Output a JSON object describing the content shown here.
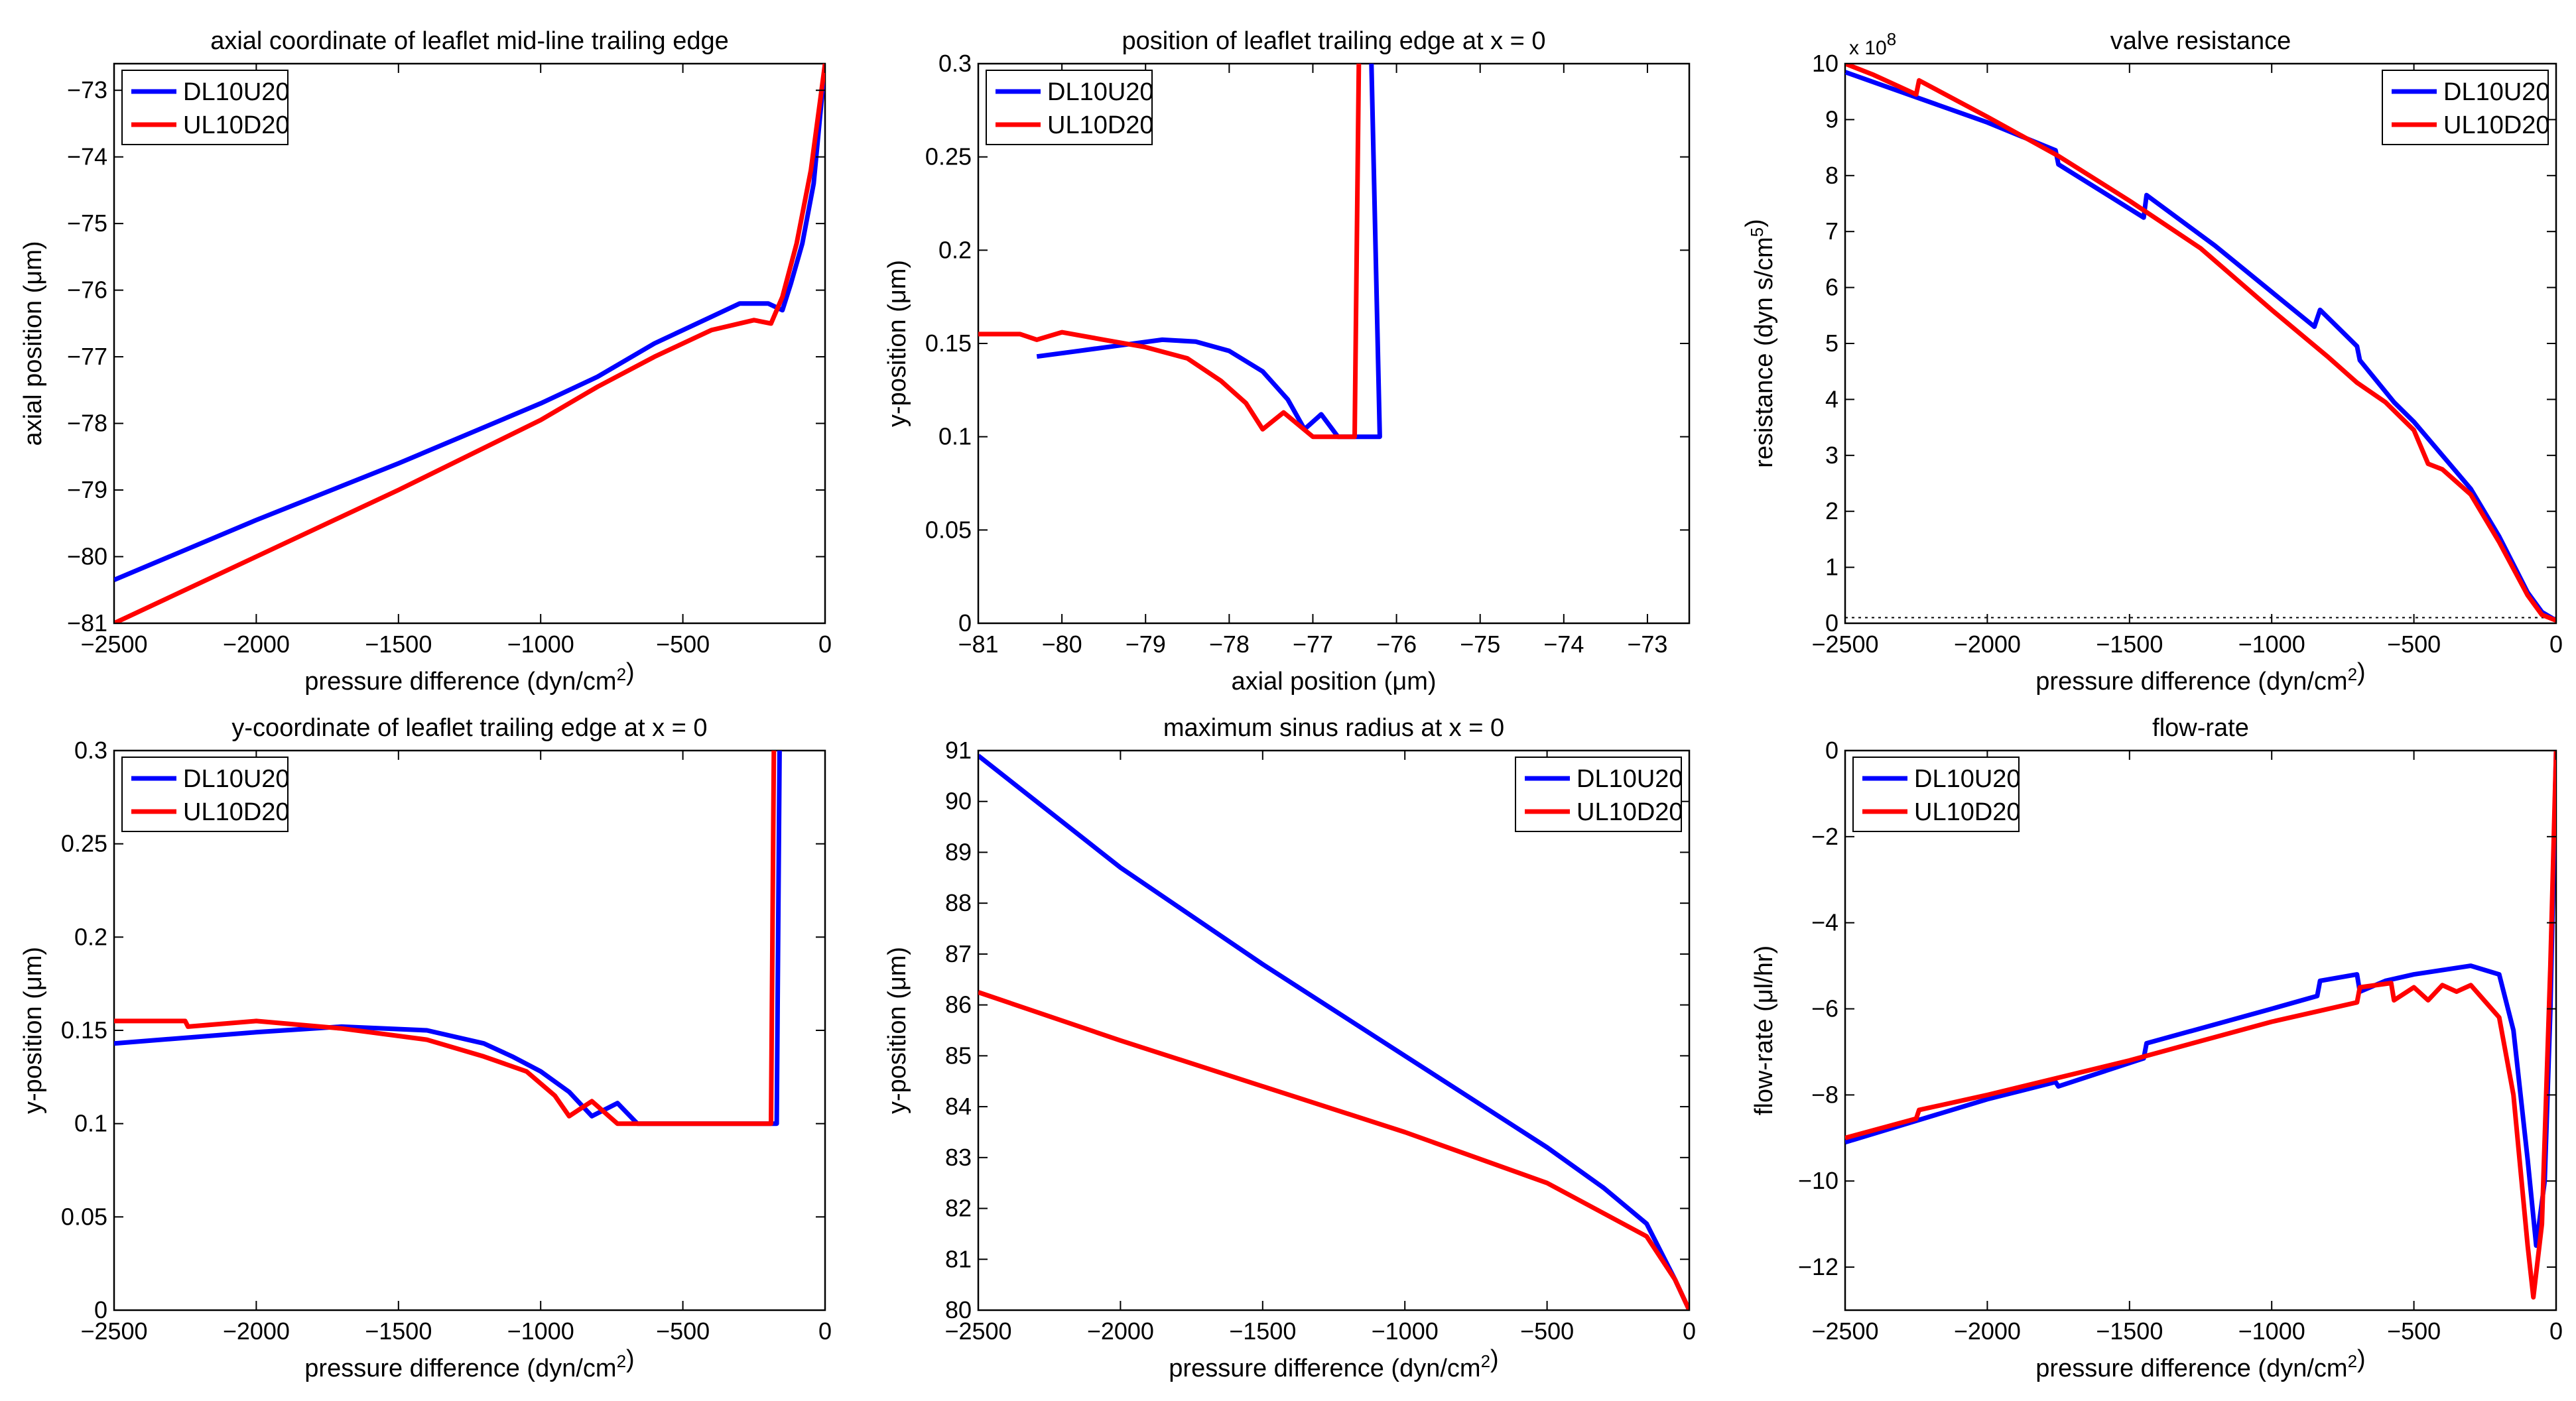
{
  "figure": {
    "panels": [
      {
        "id": "axial-coordinate",
        "title": "axial coordinate of leaflet mid-line trailing edge",
        "xlabel": "pressure difference (dyn/cm²)",
        "ylabel": "axial position (μm)"
      },
      {
        "id": "trailing-edge-position",
        "title": "position of leaflet trailing edge at x = 0",
        "xlabel": "axial position (μm)",
        "ylabel": "y-position (μm)"
      },
      {
        "id": "valve-resistance",
        "title": "valve resistance",
        "xlabel": "pressure difference (dyn/cm²)",
        "ylabel": "resistance (dyn s/cm⁵)",
        "yexponent": "x 10⁸"
      },
      {
        "id": "trailing-edge-y",
        "title": "y-coordinate of leaflet trailing edge at x = 0",
        "xlabel": "pressure difference (dyn/cm²)",
        "ylabel": "y-position (μm)"
      },
      {
        "id": "sinus-radius",
        "title": "maximum sinus radius at x = 0",
        "xlabel": "pressure difference (dyn/cm²)",
        "ylabel": "y-position (μm)"
      },
      {
        "id": "flow-rate",
        "title": "flow-rate",
        "xlabel": "pressure difference (dyn/cm²)",
        "ylabel": "flow-rate (μl/hr)"
      }
    ]
  },
  "chart_data": [
    {
      "type": "line",
      "title": "axial coordinate of leaflet mid-line trailing edge",
      "xlabel": "pressure difference (dyn/cm²)",
      "ylabel": "axial position (μm)",
      "xlim": [
        -2500,
        0
      ],
      "ylim": [
        -81,
        -72.6
      ],
      "xticks": [
        -2500,
        -2000,
        -1500,
        -1000,
        -500,
        0
      ],
      "yticks": [
        -81,
        -80,
        -79,
        -78,
        -77,
        -76,
        -75,
        -74,
        -73
      ],
      "legend_position": "top-left",
      "series": [
        {
          "name": "DL10U20",
          "color": "#0000ff",
          "points": [
            [
              -2500,
              -80.35
            ],
            [
              -2000,
              -79.45
            ],
            [
              -1500,
              -78.6
            ],
            [
              -1000,
              -77.7
            ],
            [
              -800,
              -77.3
            ],
            [
              -600,
              -76.8
            ],
            [
              -400,
              -76.4
            ],
            [
              -300,
              -76.2
            ],
            [
              -200,
              -76.2
            ],
            [
              -150,
              -76.3
            ],
            [
              -120,
              -75.9
            ],
            [
              -80,
              -75.3
            ],
            [
              -40,
              -74.4
            ],
            [
              0,
              -72.6
            ]
          ]
        },
        {
          "name": "UL10D20",
          "color": "#ff0000",
          "points": [
            [
              -2500,
              -81.0
            ],
            [
              -2000,
              -80.0
            ],
            [
              -1500,
              -79.0
            ],
            [
              -1000,
              -77.95
            ],
            [
              -800,
              -77.45
            ],
            [
              -600,
              -77.0
            ],
            [
              -400,
              -76.6
            ],
            [
              -250,
              -76.45
            ],
            [
              -190,
              -76.5
            ],
            [
              -150,
              -76.1
            ],
            [
              -100,
              -75.3
            ],
            [
              -50,
              -74.2
            ],
            [
              0,
              -72.6
            ]
          ]
        }
      ]
    },
    {
      "type": "line",
      "title": "position of leaflet trailing edge at x = 0",
      "xlabel": "axial position (μm)",
      "ylabel": "y-position (μm)",
      "xlim": [
        -81,
        -72.5
      ],
      "ylim": [
        0,
        0.3
      ],
      "xticks": [
        -81,
        -80,
        -79,
        -78,
        -77,
        -76,
        -75,
        -74,
        -73
      ],
      "yticks": [
        0,
        0.05,
        0.1,
        0.15,
        0.2,
        0.25,
        0.3
      ],
      "legend_position": "top-left",
      "series": [
        {
          "name": "DL10U20",
          "color": "#0000ff",
          "points": [
            [
              -80.3,
              0.143
            ],
            [
              -79.8,
              0.146
            ],
            [
              -79.3,
              0.149
            ],
            [
              -78.8,
              0.152
            ],
            [
              -78.4,
              0.151
            ],
            [
              -78.0,
              0.146
            ],
            [
              -77.6,
              0.135
            ],
            [
              -77.3,
              0.12
            ],
            [
              -77.1,
              0.104
            ],
            [
              -76.9,
              0.112
            ],
            [
              -76.7,
              0.1
            ],
            [
              -76.2,
              0.1
            ],
            [
              -76.3,
              0.3
            ]
          ]
        },
        {
          "name": "UL10D20",
          "color": "#ff0000",
          "points": [
            [
              -81.0,
              0.155
            ],
            [
              -80.5,
              0.155
            ],
            [
              -80.3,
              0.152
            ],
            [
              -80.0,
              0.156
            ],
            [
              -79.5,
              0.152
            ],
            [
              -79.0,
              0.148
            ],
            [
              -78.5,
              0.142
            ],
            [
              -78.1,
              0.13
            ],
            [
              -77.8,
              0.118
            ],
            [
              -77.6,
              0.104
            ],
            [
              -77.35,
              0.113
            ],
            [
              -77.0,
              0.1
            ],
            [
              -76.5,
              0.1
            ],
            [
              -76.45,
              0.3
            ]
          ]
        }
      ]
    },
    {
      "type": "line",
      "title": "valve resistance",
      "xlabel": "pressure difference (dyn/cm²)",
      "ylabel": "resistance (dyn s/cm⁵)",
      "yexponent": "x 10⁸",
      "xlim": [
        -2500,
        0
      ],
      "ylim": [
        0,
        10
      ],
      "xticks": [
        -2500,
        -2000,
        -1500,
        -1000,
        -500,
        0
      ],
      "yticks": [
        0,
        1,
        2,
        3,
        4,
        5,
        6,
        7,
        8,
        9,
        10
      ],
      "legend_position": "top-right",
      "reference_line": 0.1,
      "series": [
        {
          "name": "DL10U20",
          "color": "#0000ff",
          "points": [
            [
              -2500,
              9.85
            ],
            [
              -2000,
              8.95
            ],
            [
              -1760,
              8.45
            ],
            [
              -1750,
              8.2
            ],
            [
              -1450,
              7.25
            ],
            [
              -1440,
              7.65
            ],
            [
              -1200,
              6.75
            ],
            [
              -850,
              5.3
            ],
            [
              -830,
              5.6
            ],
            [
              -700,
              4.95
            ],
            [
              -690,
              4.7
            ],
            [
              -570,
              3.95
            ],
            [
              -500,
              3.6
            ],
            [
              -400,
              3.0
            ],
            [
              -300,
              2.4
            ],
            [
              -200,
              1.55
            ],
            [
              -100,
              0.55
            ],
            [
              -50,
              0.2
            ],
            [
              0,
              0.05
            ]
          ]
        },
        {
          "name": "UL10D20",
          "color": "#ff0000",
          "points": [
            [
              -2500,
              10.0
            ],
            [
              -2400,
              9.8
            ],
            [
              -2250,
              9.45
            ],
            [
              -2240,
              9.7
            ],
            [
              -2000,
              9.05
            ],
            [
              -1750,
              8.35
            ],
            [
              -1500,
              7.55
            ],
            [
              -1250,
              6.7
            ],
            [
              -1000,
              5.6
            ],
            [
              -800,
              4.75
            ],
            [
              -700,
              4.3
            ],
            [
              -600,
              3.95
            ],
            [
              -500,
              3.45
            ],
            [
              -450,
              2.85
            ],
            [
              -400,
              2.75
            ],
            [
              -300,
              2.3
            ],
            [
              -200,
              1.45
            ],
            [
              -100,
              0.5
            ],
            [
              -50,
              0.15
            ],
            [
              0,
              0.05
            ]
          ]
        }
      ]
    },
    {
      "type": "line",
      "title": "y-coordinate of leaflet trailing edge at x = 0",
      "xlabel": "pressure difference (dyn/cm²)",
      "ylabel": "y-position (μm)",
      "xlim": [
        -2500,
        0
      ],
      "ylim": [
        0,
        0.3
      ],
      "xticks": [
        -2500,
        -2000,
        -1500,
        -1000,
        -500,
        0
      ],
      "yticks": [
        0,
        0.05,
        0.1,
        0.15,
        0.2,
        0.25,
        0.3
      ],
      "legend_position": "top-left",
      "series": [
        {
          "name": "DL10U20",
          "color": "#0000ff",
          "points": [
            [
              -2500,
              0.143
            ],
            [
              -2000,
              0.149
            ],
            [
              -1700,
              0.152
            ],
            [
              -1400,
              0.15
            ],
            [
              -1200,
              0.143
            ],
            [
              -1100,
              0.136
            ],
            [
              -1000,
              0.128
            ],
            [
              -900,
              0.117
            ],
            [
              -820,
              0.104
            ],
            [
              -730,
              0.111
            ],
            [
              -660,
              0.1
            ],
            [
              -170,
              0.1
            ],
            [
              -160,
              0.3
            ]
          ]
        },
        {
          "name": "UL10D20",
          "color": "#ff0000",
          "points": [
            [
              -2500,
              0.155
            ],
            [
              -2250,
              0.155
            ],
            [
              -2240,
              0.152
            ],
            [
              -2000,
              0.155
            ],
            [
              -1700,
              0.151
            ],
            [
              -1400,
              0.145
            ],
            [
              -1200,
              0.136
            ],
            [
              -1050,
              0.128
            ],
            [
              -950,
              0.115
            ],
            [
              -900,
              0.104
            ],
            [
              -820,
              0.112
            ],
            [
              -730,
              0.1
            ],
            [
              -190,
              0.1
            ],
            [
              -180,
              0.3
            ]
          ]
        }
      ]
    },
    {
      "type": "line",
      "title": "maximum sinus radius at x = 0",
      "xlabel": "pressure difference (dyn/cm²)",
      "ylabel": "y-position (μm)",
      "xlim": [
        -2500,
        0
      ],
      "ylim": [
        80,
        91
      ],
      "xticks": [
        -2500,
        -2000,
        -1500,
        -1000,
        -500,
        0
      ],
      "yticks": [
        80,
        81,
        82,
        83,
        84,
        85,
        86,
        87,
        88,
        89,
        90,
        91
      ],
      "legend_position": "top-right",
      "series": [
        {
          "name": "DL10U20",
          "color": "#0000ff",
          "points": [
            [
              -2500,
              90.9
            ],
            [
              -2000,
              88.7
            ],
            [
              -1500,
              86.8
            ],
            [
              -1000,
              85.0
            ],
            [
              -500,
              83.2
            ],
            [
              -300,
              82.4
            ],
            [
              -150,
              81.7
            ],
            [
              -50,
              80.6
            ],
            [
              0,
              80.0
            ]
          ]
        },
        {
          "name": "UL10D20",
          "color": "#ff0000",
          "points": [
            [
              -2500,
              86.25
            ],
            [
              -2000,
              85.3
            ],
            [
              -1500,
              84.4
            ],
            [
              -1000,
              83.5
            ],
            [
              -500,
              82.5
            ],
            [
              -300,
              81.9
            ],
            [
              -150,
              81.45
            ],
            [
              -50,
              80.6
            ],
            [
              0,
              80.0
            ]
          ]
        }
      ]
    },
    {
      "type": "line",
      "title": "flow-rate",
      "xlabel": "pressure difference (dyn/cm²)",
      "ylabel": "flow-rate (μl/hr)",
      "xlim": [
        -2500,
        0
      ],
      "ylim": [
        -13,
        0
      ],
      "xticks": [
        -2500,
        -2000,
        -1500,
        -1000,
        -500,
        0
      ],
      "yticks": [
        -12,
        -10,
        -8,
        -6,
        -4,
        -2,
        0
      ],
      "legend_position": "top-left",
      "series": [
        {
          "name": "DL10U20",
          "color": "#0000ff",
          "points": [
            [
              -2500,
              -9.1
            ],
            [
              -2000,
              -8.1
            ],
            [
              -1760,
              -7.7
            ],
            [
              -1750,
              -7.8
            ],
            [
              -1450,
              -7.15
            ],
            [
              -1440,
              -6.8
            ],
            [
              -1000,
              -6.0
            ],
            [
              -840,
              -5.7
            ],
            [
              -830,
              -5.35
            ],
            [
              -700,
              -5.2
            ],
            [
              -690,
              -5.6
            ],
            [
              -600,
              -5.35
            ],
            [
              -500,
              -5.2
            ],
            [
              -400,
              -5.1
            ],
            [
              -300,
              -5.0
            ],
            [
              -200,
              -5.2
            ],
            [
              -150,
              -6.5
            ],
            [
              -100,
              -9.5
            ],
            [
              -70,
              -11.5
            ],
            [
              -40,
              -10.0
            ],
            [
              -20,
              -6.0
            ],
            [
              0,
              0
            ]
          ]
        },
        {
          "name": "UL10D20",
          "color": "#ff0000",
          "points": [
            [
              -2500,
              -9.0
            ],
            [
              -2250,
              -8.55
            ],
            [
              -2240,
              -8.35
            ],
            [
              -2000,
              -8.0
            ],
            [
              -1500,
              -7.2
            ],
            [
              -1000,
              -6.3
            ],
            [
              -700,
              -5.85
            ],
            [
              -690,
              -5.5
            ],
            [
              -580,
              -5.4
            ],
            [
              -570,
              -5.8
            ],
            [
              -500,
              -5.5
            ],
            [
              -450,
              -5.8
            ],
            [
              -400,
              -5.45
            ],
            [
              -350,
              -5.6
            ],
            [
              -300,
              -5.45
            ],
            [
              -200,
              -6.2
            ],
            [
              -150,
              -8.0
            ],
            [
              -100,
              -11.5
            ],
            [
              -80,
              -12.7
            ],
            [
              -50,
              -11.0
            ],
            [
              -20,
              -5.0
            ],
            [
              0,
              0
            ]
          ]
        }
      ]
    }
  ]
}
